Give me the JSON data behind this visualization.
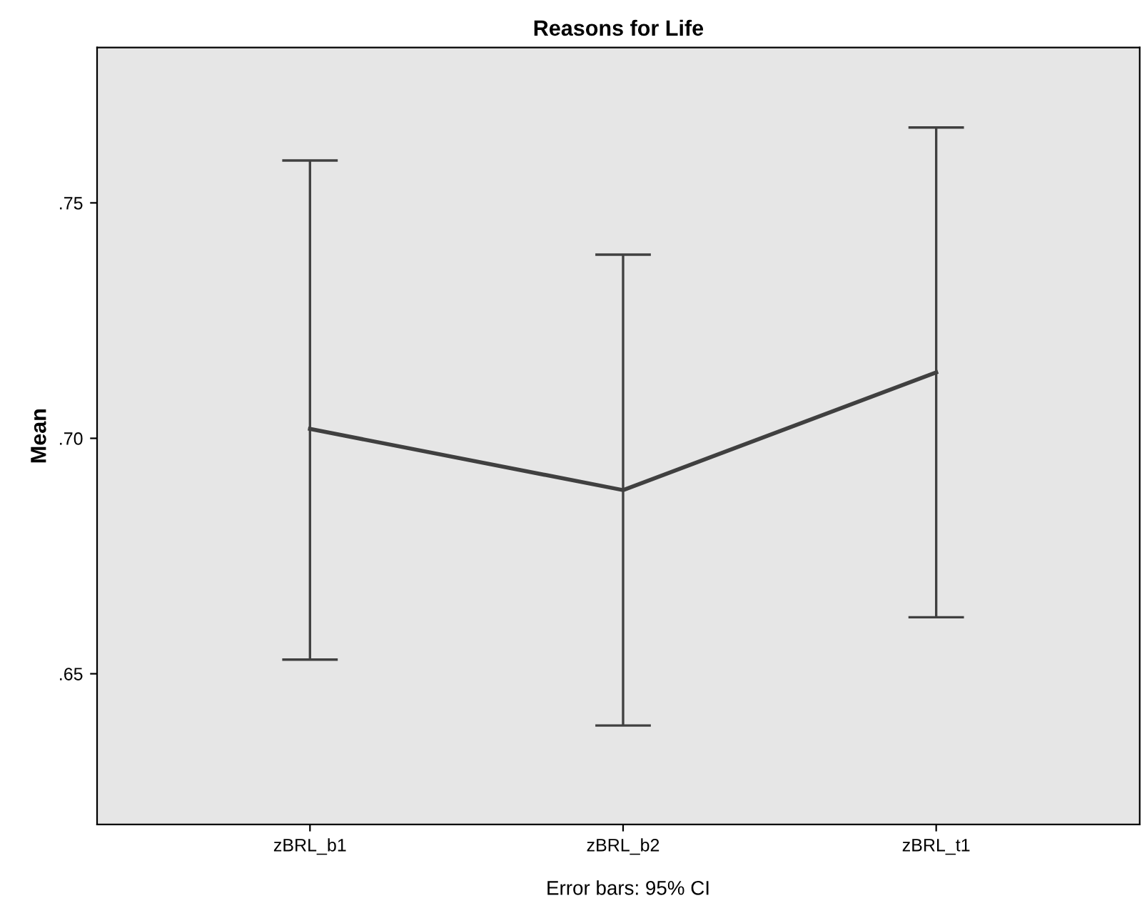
{
  "chart_data": {
    "type": "line",
    "title": "Reasons for Life",
    "ylabel": "Mean",
    "categories": [
      "zBRL_b1",
      "zBRL_b2",
      "zBRL_t1"
    ],
    "values": [
      0.702,
      0.689,
      0.714
    ],
    "errors": [
      [
        0.653,
        0.759
      ],
      [
        0.639,
        0.739
      ],
      [
        0.662,
        0.766
      ]
    ],
    "color": "#404040",
    "ylim": [
      0.618,
      0.783
    ],
    "yticks": [
      {
        "value": 0.65,
        "label": ".65"
      },
      {
        "value": 0.7,
        "label": ".70"
      },
      {
        "value": 0.75,
        "label": ".75"
      }
    ],
    "grid": false,
    "legend": false,
    "marker": "none",
    "line_style": "solid",
    "annotations": [
      "Error bars: 95% CI"
    ]
  }
}
